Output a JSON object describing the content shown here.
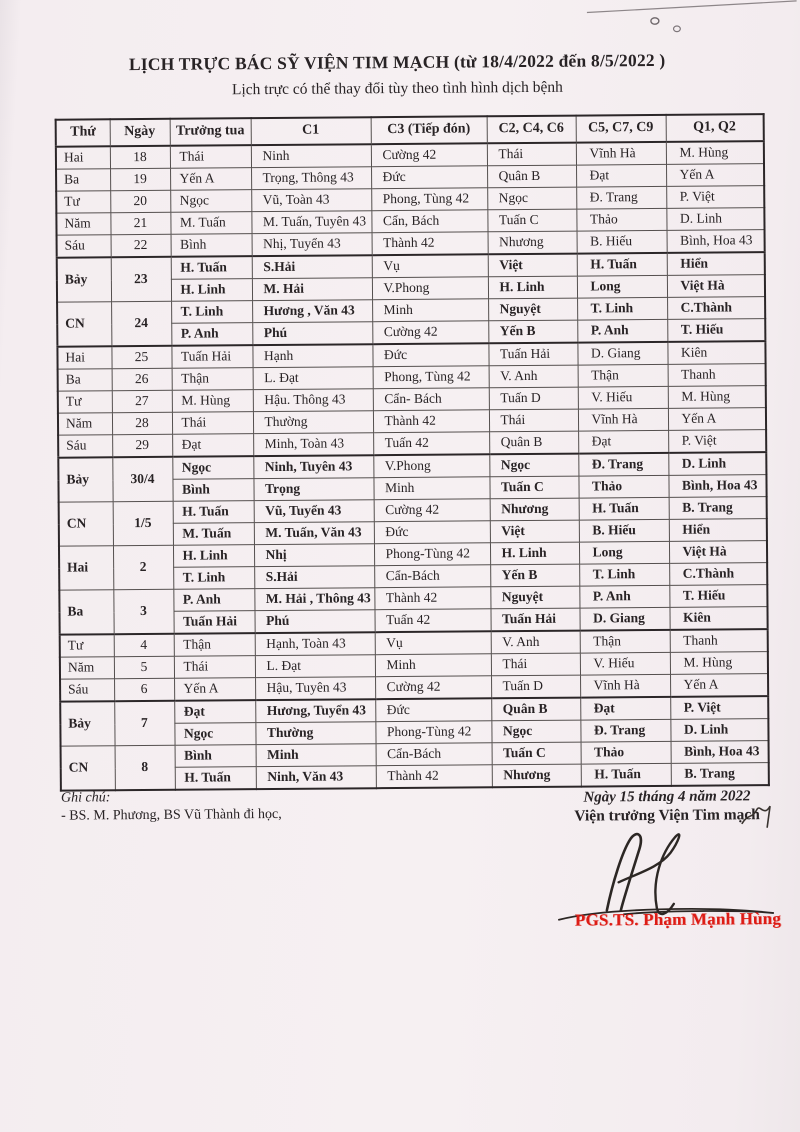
{
  "page": {
    "title": "LỊCH TRỰC BÁC SỸ VIỆN TIM MẠCH  (từ 18/4/2022 đến 8/5/2022 )",
    "subtitle": "Lịch trực có thể thay đổi tùy theo tình hình dịch bệnh"
  },
  "table": {
    "headers": [
      "Thứ",
      "Ngày",
      "Trưởng tua",
      "C1",
      "C3 (Tiếp đón)",
      "C2, C4, C6",
      "C5, C7, C9",
      "Q1, Q2"
    ],
    "groups": [
      {
        "thu": "Hai",
        "ngay": "18",
        "bold": false,
        "thick_top": false,
        "lines": [
          [
            "Thái",
            "Ninh",
            "Cường 42",
            "Thái",
            "Vĩnh Hà",
            "M. Hùng"
          ]
        ]
      },
      {
        "thu": "Ba",
        "ngay": "19",
        "bold": false,
        "thick_top": false,
        "lines": [
          [
            "Yến A",
            "Trọng, Thông 43",
            "Đức",
            "Quân B",
            "Đạt",
            "Yến A"
          ]
        ]
      },
      {
        "thu": "Tư",
        "ngay": "20",
        "bold": false,
        "thick_top": false,
        "lines": [
          [
            "Ngọc",
            "Vũ, Toàn 43",
            "Phong, Tùng 42",
            "Ngọc",
            "Đ. Trang",
            "P. Việt"
          ]
        ]
      },
      {
        "thu": "Năm",
        "ngay": "21",
        "bold": false,
        "thick_top": false,
        "lines": [
          [
            "M. Tuấn",
            "M. Tuấn, Tuyên 43",
            "Cẩn, Bách",
            "Tuấn C",
            "Thảo",
            "D. Linh"
          ]
        ]
      },
      {
        "thu": "Sáu",
        "ngay": "22",
        "bold": false,
        "thick_top": false,
        "lines": [
          [
            "Bình",
            "Nhị, Tuyển 43",
            "Thành 42",
            "Nhương",
            "B. Hiếu",
            "Bình, Hoa 43"
          ]
        ]
      },
      {
        "thu": "Bảy",
        "ngay": "23",
        "bold": true,
        "thick_top": true,
        "lines": [
          [
            "H. Tuấn",
            "S.Hải",
            "Vụ",
            "Việt",
            "H. Tuấn",
            "Hiển"
          ],
          [
            "H. Linh",
            "M. Hải",
            "V.Phong",
            "H. Linh",
            "Long",
            "Việt Hà"
          ]
        ]
      },
      {
        "thu": "CN",
        "ngay": "24",
        "bold": true,
        "thick_top": false,
        "lines": [
          [
            "T. Linh",
            "Hương , Văn 43",
            "Minh",
            "Nguyệt",
            "T. Linh",
            "C.Thành"
          ],
          [
            "P. Anh",
            "Phú",
            "Cường 42",
            "Yến B",
            "P. Anh",
            "T. Hiếu"
          ]
        ]
      },
      {
        "thu": "Hai",
        "ngay": "25",
        "bold": false,
        "thick_top": true,
        "lines": [
          [
            "Tuấn Hải",
            "Hạnh",
            "Đức",
            "Tuấn Hải",
            "D. Giang",
            "Kiên"
          ]
        ]
      },
      {
        "thu": "Ba",
        "ngay": "26",
        "bold": false,
        "thick_top": false,
        "lines": [
          [
            "Thận",
            "L. Đạt",
            "Phong, Tùng 42",
            "V. Anh",
            "Thận",
            "Thanh"
          ]
        ]
      },
      {
        "thu": "Tư",
        "ngay": "27",
        "bold": false,
        "thick_top": false,
        "lines": [
          [
            "M. Hùng",
            "Hậu. Thông 43",
            "Cẩn- Bách",
            "Tuấn D",
            "V. Hiếu",
            "M. Hùng"
          ]
        ]
      },
      {
        "thu": "Năm",
        "ngay": "28",
        "bold": false,
        "thick_top": false,
        "lines": [
          [
            "Thái",
            "Thường",
            "Thành 42",
            "Thái",
            "Vĩnh Hà",
            "Yến A"
          ]
        ]
      },
      {
        "thu": "Sáu",
        "ngay": "29",
        "bold": false,
        "thick_top": false,
        "lines": [
          [
            "Đạt",
            "Minh, Toàn 43",
            "Tuấn 42",
            "Quân B",
            "Đạt",
            "P. Việt"
          ]
        ]
      },
      {
        "thu": "Bảy",
        "ngay": "30/4",
        "bold": true,
        "thick_top": true,
        "lines": [
          [
            "Ngọc",
            "Ninh, Tuyên 43",
            "V.Phong",
            "Ngọc",
            "Đ. Trang",
            "D. Linh"
          ],
          [
            "Bình",
            "Trọng",
            "Minh",
            "Tuấn C",
            "Thảo",
            "Bình, Hoa 43"
          ]
        ]
      },
      {
        "thu": "CN",
        "ngay": "1/5",
        "bold": true,
        "thick_top": false,
        "lines": [
          [
            "H. Tuấn",
            "Vũ, Tuyển 43",
            "Cường 42",
            "Nhương",
            "H. Tuấn",
            "B. Trang"
          ],
          [
            "M. Tuấn",
            "M. Tuấn, Văn 43",
            "Đức",
            "Việt",
            "B. Hiếu",
            "Hiển"
          ]
        ]
      },
      {
        "thu": "Hai",
        "ngay": "2",
        "bold": true,
        "thick_top": false,
        "lines": [
          [
            "H. Linh",
            "Nhị",
            "Phong-Tùng 42",
            "H. Linh",
            "Long",
            "Việt Hà"
          ],
          [
            "T. Linh",
            "S.Hải",
            "Cẩn-Bách",
            "Yến B",
            "T. Linh",
            "C.Thành"
          ]
        ]
      },
      {
        "thu": "Ba",
        "ngay": "3",
        "bold": true,
        "thick_top": false,
        "lines": [
          [
            "P. Anh",
            "M. Hải , Thông 43",
            "Thành 42",
            "Nguyệt",
            "P. Anh",
            "T. Hiếu"
          ],
          [
            "Tuấn Hải",
            "Phú",
            "Tuấn 42",
            "Tuấn Hải",
            "D. Giang",
            "Kiên"
          ]
        ]
      },
      {
        "thu": "Tư",
        "ngay": "4",
        "bold": false,
        "thick_top": true,
        "lines": [
          [
            "Thận",
            "Hạnh, Toàn 43",
            "Vụ",
            "V. Anh",
            "Thận",
            "Thanh"
          ]
        ]
      },
      {
        "thu": "Năm",
        "ngay": "5",
        "bold": false,
        "thick_top": false,
        "lines": [
          [
            "Thái",
            "L. Đạt",
            "Minh",
            "Thái",
            "V. Hiếu",
            "M. Hùng"
          ]
        ]
      },
      {
        "thu": "Sáu",
        "ngay": "6",
        "bold": false,
        "thick_top": false,
        "lines": [
          [
            "Yến A",
            "Hậu, Tuyên 43",
            "Cường 42",
            "Tuấn D",
            "Vĩnh Hà",
            "Yến A"
          ]
        ]
      },
      {
        "thu": "Bảy",
        "ngay": "7",
        "bold": true,
        "thick_top": true,
        "lines": [
          [
            "Đạt",
            "Hương, Tuyển 43",
            "Đức",
            "Quân B",
            "Đạt",
            "P. Việt"
          ],
          [
            "Ngọc",
            "Thường",
            "Phong-Tùng 42",
            "Ngọc",
            "Đ. Trang",
            "D. Linh"
          ]
        ]
      },
      {
        "thu": "CN",
        "ngay": "8",
        "bold": true,
        "thick_top": false,
        "lines": [
          [
            "Bình",
            "Minh",
            "Cẩn-Bách",
            "Tuấn C",
            "Thảo",
            "Bình, Hoa 43"
          ],
          [
            "H. Tuấn",
            "Ninh, Văn 43",
            "Thành 42",
            "Nhương",
            "H. Tuấn",
            "B. Trang"
          ]
        ]
      }
    ]
  },
  "footer": {
    "notes_label": "Ghi chú:",
    "note_1": "-  BS. M. Phương, BS Vũ Thành đi học,",
    "date_line": "Ngày 15 tháng 4 năm 2022",
    "director_title": "Viện trưởng Viện Tim mạch",
    "signer_name": "PGS.TS. Phạm Mạnh Hùng",
    "accent_red": "#dd1c15"
  }
}
